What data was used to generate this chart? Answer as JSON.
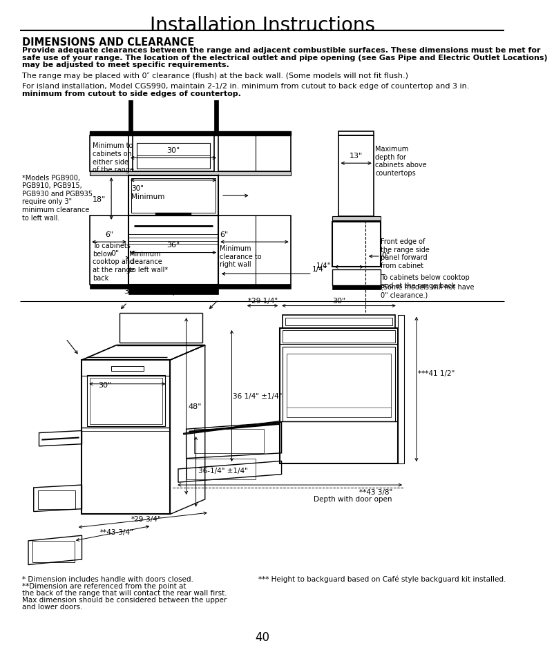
{
  "title": "Installation Instructions",
  "section_title": "DIMENSIONS AND CLEARANCE",
  "para1_line1": "Provide adequate clearances between the range and adjacent combustible surfaces. These dimensions must be met for",
  "para1_line2": "safe use of your range. The location of the electrical outlet and pipe opening (see Gas Pipe and Electric Outlet Locations)",
  "para1_line3": "may be adjusted to meet specific requirements.",
  "para2": "The range may be placed with 0″ clearance (flush) at the back wall. (Some models will not fit flush.)",
  "para3_line1": "For island installation, Model CGS990, maintain 2-1/2 in. minimum from cutout to back edge of countertop and 3 in.",
  "para3_line2": "minimum from cutout to side edges of countertop.",
  "note_left": "*Models PGB900,\nPGB910, PGB915,\nPGB930 and PGB935\nrequire only 3\"\nminimum clearance\nto left wall.",
  "lbl_min_cabinets": "Minimum to\ncabinets on\neither side\nof the range",
  "lbl_30_top": "30\"",
  "lbl_30_min": "30\"\nMinimum",
  "lbl_18": "18\"",
  "lbl_6_left": "6\"",
  "lbl_6_right": "6\"",
  "lbl_min_left": "Minimum\nclearance\nto left wall*",
  "lbl_min_right": "Minimum\nclearance to\nright wall",
  "lbl_36": "36\"",
  "lbl_0_left": "0\"",
  "lbl_14_right": "1/4\"",
  "lbl_0_right": "0\"",
  "lbl_13": "13\"",
  "lbl_max_depth": "Maximum\ndepth for\ncabinets above\ncountertops",
  "lbl_to_cabinets": "To cabinets\nbelow\ncooktop and\nat the range\nback",
  "lbl_front_edge": "Front edge of\nthe range side\npanel forward\nfrom cabinet",
  "lbl_to_cab_below": "To cabinets below cooktop\nand at the range back",
  "lbl_no_clear": "(Some models will not have\n0\" clearance.)",
  "dim_30_34": "30 3/4\"",
  "dim_30": "30\"",
  "dim_48": "48\"",
  "dim_36_14": "36-1/4\" ±1/4\"",
  "dim_29_34": "*29-3/4\"",
  "dim_43_34": "**43-3/4\"",
  "dim_29_14": "*29 1/4\"",
  "dim_30_r": "30\"",
  "dim_36_14_r": "36 1/4\" ±1/4\"",
  "dim_41_12": "***41 1/2\"",
  "dim_43_38": "**43 3/8\"",
  "dim_depth_open": "Depth with door open",
  "footnote1": "* Dimension includes handle with doors closed.",
  "footnote2a": "**Dimension are referenced from the point at",
  "footnote2b": "the back of the range that will contact the rear wall first.",
  "footnote2c": "Max dimension should be considered between the upper",
  "footnote2d": "and lower doors.",
  "footnote3": "*** Height to backguard based on Café style backguard kit installed.",
  "page_number": "40",
  "bg_color": "#ffffff"
}
